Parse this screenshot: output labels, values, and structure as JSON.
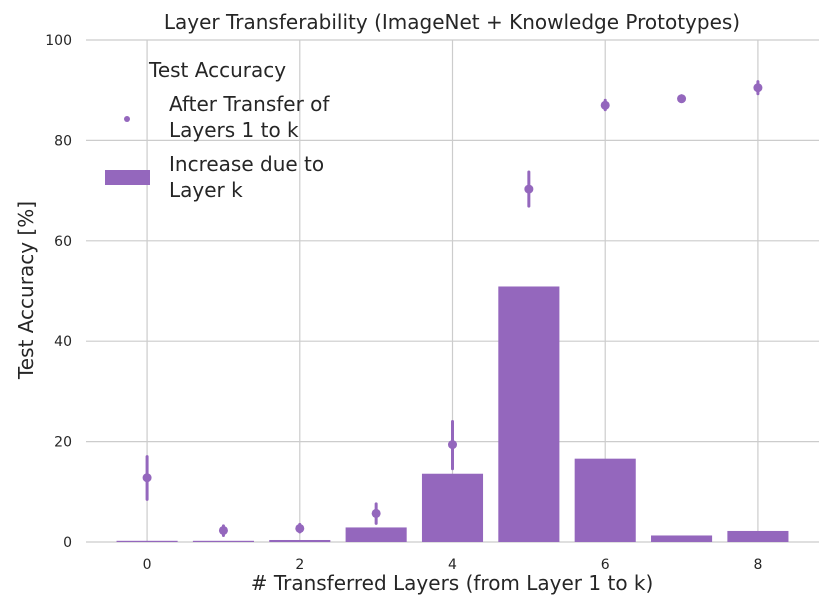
{
  "chart_data": {
    "type": "bar",
    "title": "Layer Transferability (ImageNet + Knowledge Prototypes)",
    "xlabel": "# Transferred Layers (from Layer 1 to k)",
    "ylabel": "Test Accuracy [%]",
    "xlim": [
      -0.8,
      8.8
    ],
    "ylim": [
      0,
      100
    ],
    "xticks": [
      0,
      2,
      4,
      6,
      8
    ],
    "yticks": [
      0,
      20,
      40,
      60,
      80,
      100
    ],
    "grid": true,
    "legend": {
      "title": "Test Accuracy",
      "placement": "top-left",
      "entries": [
        {
          "label_line1": "After Transfer of",
          "label_line2": "Layers 1 to k"
        },
        {
          "label_line1": "Increase due to",
          "label_line2": "Layer k"
        }
      ]
    },
    "color": "#9467bd",
    "bars": {
      "x": [
        0,
        1,
        2,
        3,
        4,
        5,
        6,
        7,
        8
      ],
      "values": [
        0,
        0,
        0.4,
        2.9,
        13.6,
        50.9,
        16.6,
        1.3,
        2.2
      ]
    },
    "points": {
      "x": [
        0,
        1,
        2,
        3,
        4,
        5,
        6,
        7,
        8
      ],
      "values": [
        12.8,
        2.3,
        2.7,
        5.7,
        19.4,
        70.3,
        87.0,
        88.3,
        90.5
      ],
      "err_low": [
        8.5,
        1.3,
        2.0,
        3.7,
        14.6,
        66.9,
        86.1,
        87.8,
        89.3
      ],
      "err_high": [
        17.0,
        3.2,
        3.5,
        7.6,
        24.0,
        73.7,
        88.0,
        88.9,
        91.7
      ]
    }
  }
}
